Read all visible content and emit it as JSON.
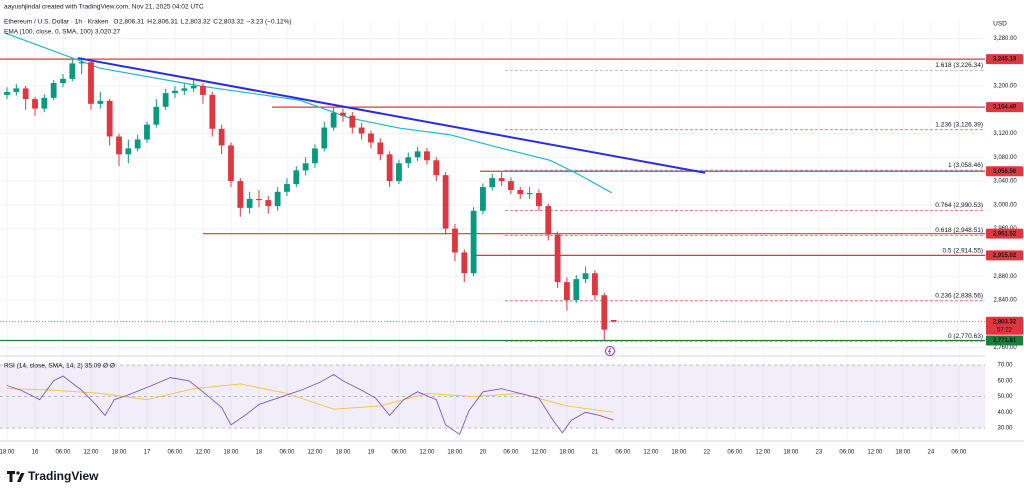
{
  "chart_data": {
    "type": "candlestick",
    "credit": "aayushjindal created with TradingView.com, Nov 21, 2025 04:02 UTC",
    "symbol": "Ethereum / U.S. Dollar · 1h · Kraken",
    "quote": [
      {
        "key": "O",
        "value": "2,806.31"
      },
      {
        "key": "H",
        "value": "2,806.31"
      },
      {
        "key": "L",
        "value": "2,803.32"
      },
      {
        "key": "C",
        "value": "2,803.32"
      }
    ],
    "change": "−3.23 (−0.12%)",
    "currency": "USD",
    "up_color": "#089981",
    "down_color": "#e0363f",
    "xlim": [
      -7.5,
      203.6
    ],
    "ylim": [
      2747.4,
      3314.4
    ],
    "yticks": [
      {
        "value": 3280,
        "label": "3,280.00"
      },
      {
        "value": 3200,
        "label": "3,200.00"
      },
      {
        "value": 3120,
        "label": "3,120.00"
      },
      {
        "value": 3080,
        "label": "3,080.00"
      },
      {
        "value": 3040,
        "label": "3,040.00"
      },
      {
        "value": 3000,
        "label": "3,000.00"
      },
      {
        "value": 2960,
        "label": "2,960.00"
      },
      {
        "value": 2880,
        "label": "2,880.00"
      },
      {
        "value": 2840,
        "label": "2,840.00"
      },
      {
        "value": 2760,
        "label": "2,760.00"
      }
    ],
    "xticks": [
      {
        "value": -6,
        "label": "18:00"
      },
      {
        "value": 0,
        "label": "16"
      },
      {
        "value": 6,
        "label": "06:00"
      },
      {
        "value": 12,
        "label": "12:00"
      },
      {
        "value": 18,
        "label": "18:00"
      },
      {
        "value": 24,
        "label": "17"
      },
      {
        "value": 30,
        "label": "06:00"
      },
      {
        "value": 36,
        "label": "12:00"
      },
      {
        "value": 42,
        "label": "18:00"
      },
      {
        "value": 48,
        "label": "18"
      },
      {
        "value": 54,
        "label": "06:00"
      },
      {
        "value": 60,
        "label": "12:00"
      },
      {
        "value": 66,
        "label": "18:00"
      },
      {
        "value": 72,
        "label": "19"
      },
      {
        "value": 78,
        "label": "06:00"
      },
      {
        "value": 84,
        "label": "12:00"
      },
      {
        "value": 90,
        "label": "18:00"
      },
      {
        "value": 96,
        "label": "20"
      },
      {
        "value": 102,
        "label": "06:00"
      },
      {
        "value": 108,
        "label": "12:00"
      },
      {
        "value": 114,
        "label": "18:00"
      },
      {
        "value": 120,
        "label": "21"
      },
      {
        "value": 126,
        "label": "06:00"
      },
      {
        "value": 132,
        "label": "12:00"
      },
      {
        "value": 138,
        "label": "18:00"
      },
      {
        "value": 144,
        "label": "22"
      },
      {
        "value": 150,
        "label": "06:00"
      },
      {
        "value": 156,
        "label": "12:00"
      },
      {
        "value": 162,
        "label": "18:00"
      },
      {
        "value": 168,
        "label": "23"
      },
      {
        "value": 174,
        "label": "06:00"
      },
      {
        "value": 180,
        "label": "12:00"
      },
      {
        "value": 186,
        "label": "18:00"
      },
      {
        "value": 192,
        "label": "24"
      },
      {
        "value": 198,
        "label": "06:00"
      }
    ],
    "x": [
      -6,
      -4,
      -2,
      0,
      2,
      4,
      6,
      8,
      10,
      12,
      14,
      16,
      18,
      20,
      22,
      24,
      26,
      28,
      30,
      32,
      34,
      36,
      38,
      40,
      42,
      44,
      46,
      48,
      50,
      52,
      54,
      56,
      58,
      60,
      62,
      64,
      66,
      68,
      70,
      72,
      74,
      76,
      78,
      80,
      82,
      84,
      86,
      88,
      90,
      92,
      94,
      96,
      98,
      100,
      102,
      104,
      106,
      108,
      110,
      112,
      114,
      116,
      118,
      120,
      122,
      124
    ],
    "candles": [
      [
        3185,
        3198,
        3178,
        3190
      ],
      [
        3190,
        3203,
        3184,
        3196
      ],
      [
        3196,
        3200,
        3160,
        3178
      ],
      [
        3178,
        3182,
        3150,
        3162
      ],
      [
        3162,
        3186,
        3156,
        3180
      ],
      [
        3180,
        3210,
        3176,
        3205
      ],
      [
        3205,
        3220,
        3198,
        3212
      ],
      [
        3212,
        3244,
        3208,
        3238
      ],
      [
        3238,
        3248,
        3220,
        3240
      ],
      [
        3240,
        3242,
        3160,
        3170
      ],
      [
        3170,
        3190,
        3162,
        3175
      ],
      [
        3175,
        3178,
        3100,
        3115
      ],
      [
        3115,
        3120,
        3065,
        3085
      ],
      [
        3085,
        3110,
        3070,
        3095
      ],
      [
        3095,
        3118,
        3090,
        3110
      ],
      [
        3110,
        3140,
        3104,
        3135
      ],
      [
        3135,
        3178,
        3130,
        3165
      ],
      [
        3165,
        3195,
        3160,
        3188
      ],
      [
        3188,
        3200,
        3180,
        3192
      ],
      [
        3192,
        3204,
        3185,
        3196
      ],
      [
        3196,
        3210,
        3190,
        3200
      ],
      [
        3200,
        3205,
        3170,
        3185
      ],
      [
        3185,
        3190,
        3115,
        3128
      ],
      [
        3128,
        3135,
        3085,
        3100
      ],
      [
        3100,
        3105,
        3030,
        3040
      ],
      [
        3040,
        3045,
        2980,
        2995
      ],
      [
        2995,
        3022,
        2985,
        3010
      ],
      [
        3010,
        3025,
        2996,
        3008
      ],
      [
        3008,
        3015,
        2985,
        2998
      ],
      [
        2998,
        3030,
        2990,
        3022
      ],
      [
        3022,
        3045,
        3015,
        3035
      ],
      [
        3035,
        3065,
        3030,
        3058
      ],
      [
        3058,
        3080,
        3050,
        3070
      ],
      [
        3070,
        3102,
        3062,
        3095
      ],
      [
        3095,
        3140,
        3090,
        3130
      ],
      [
        3130,
        3164,
        3125,
        3155
      ],
      [
        3155,
        3162,
        3140,
        3150
      ],
      [
        3150,
        3156,
        3120,
        3130
      ],
      [
        3130,
        3138,
        3110,
        3120
      ],
      [
        3120,
        3125,
        3095,
        3105
      ],
      [
        3105,
        3112,
        3075,
        3085
      ],
      [
        3085,
        3090,
        3030,
        3040
      ],
      [
        3040,
        3076,
        3035,
        3070
      ],
      [
        3070,
        3088,
        3062,
        3080
      ],
      [
        3080,
        3098,
        3074,
        3090
      ],
      [
        3090,
        3096,
        3068,
        3075
      ],
      [
        3075,
        3080,
        3040,
        3050
      ],
      [
        3050,
        3055,
        2950,
        2960
      ],
      [
        2960,
        2968,
        2905,
        2920
      ],
      [
        2920,
        2925,
        2870,
        2885
      ],
      [
        2885,
        2996,
        2880,
        2990
      ],
      [
        2990,
        3036,
        2984,
        3030
      ],
      [
        3030,
        3052,
        3024,
        3045
      ],
      [
        3045,
        3055,
        3032,
        3040
      ],
      [
        3040,
        3046,
        3018,
        3025
      ],
      [
        3025,
        3030,
        3010,
        3018
      ],
      [
        3018,
        3030,
        3010,
        3020
      ],
      [
        3020,
        3026,
        2990,
        2998
      ],
      [
        2998,
        3002,
        2940,
        2950
      ],
      [
        2950,
        2955,
        2860,
        2870
      ],
      [
        2870,
        2878,
        2822,
        2840
      ],
      [
        2840,
        2882,
        2835,
        2875
      ],
      [
        2875,
        2896,
        2868,
        2885
      ],
      [
        2885,
        2890,
        2840,
        2848
      ],
      [
        2848,
        2852,
        2772,
        2790
      ],
      [
        2806.31,
        2806.31,
        2803.32,
        2803.32
      ]
    ],
    "ema": {
      "name": "EMA (100, close, 0, SMA, 100)",
      "last_label": "3,020.27",
      "color": "#22b8cf",
      "x": [
        -6.4,
        13.9,
        35.4,
        56.8,
        67.5,
        78.2,
        88.9,
        99.6,
        110.4,
        116.8,
        123.6
      ],
      "values": [
        3289,
        3230,
        3200,
        3176,
        3146,
        3129,
        3118,
        3096,
        3075,
        3050,
        3020.27
      ]
    },
    "trendline": {
      "color": "#2b2be0",
      "x": [
        9.2,
        143.6
      ],
      "values": [
        3247,
        3054
      ]
    },
    "levels": [
      {
        "value": 3245.18,
        "label": "3,245.18",
        "color": "#e0363f",
        "start": -7.5
      },
      {
        "value": 3164.49,
        "label": "3,164.49",
        "color": "#e0363f",
        "start": 50.8
      },
      {
        "value": 3056.56,
        "label": "3,056.56",
        "color": "#e0363f",
        "start": 95.4
      },
      {
        "value": 2951.52,
        "label": "2,951.52",
        "color": "#e0363f",
        "start": 36
      },
      {
        "value": 2915.02,
        "label": "2,915.02",
        "color": "#e0363f",
        "start": 93.6
      },
      {
        "value": 2771.81,
        "label": "2,771.81",
        "color": "#1b7f3a",
        "start": -7.5
      }
    ],
    "last_price": {
      "value": 2803.32,
      "label": "2,803.32",
      "countdown": "57:22",
      "color": "#e0363f"
    },
    "fib_start": 100.7,
    "fibs": [
      {
        "value": 3226.34,
        "label": "1.618 (3,226.34)",
        "color": "#a58fc4"
      },
      {
        "value": 3126.39,
        "label": "1.236 (3,126.39)",
        "color": "#9c27b0"
      },
      {
        "value": 3058.46,
        "label": "1 (3,058.46)",
        "color": "#2196f3"
      },
      {
        "value": 2990.53,
        "label": "0.764 (2,990.53)",
        "color": "#e0363f"
      },
      {
        "value": 2948.51,
        "label": "0.618 (2,948.51)",
        "color": "#089981"
      },
      {
        "value": 2914.55,
        "label": "0.5 (2,914.55)",
        "color": "#e0363f"
      },
      {
        "value": 2838.56,
        "label": "0.236 (2,838.56)",
        "color": "#e0363f"
      },
      {
        "value": 2770.63,
        "label": "0 (2,770.63)",
        "color": "#787b86"
      }
    ],
    "rsi": {
      "title": "RSI (14, close, SMA, 14, 2)",
      "value_label": "35.09",
      "extra": "Ø Ø",
      "color": "#7e57c2",
      "ylim": [
        22.4,
        75.1
      ],
      "band": [
        30,
        70
      ],
      "guides": [
        70,
        50,
        30
      ],
      "yticks": [
        {
          "value": 70,
          "label": "70.00"
        },
        {
          "value": 60,
          "label": "60.00"
        },
        {
          "value": 50,
          "label": "50.00"
        },
        {
          "value": 40,
          "label": "40.00"
        },
        {
          "value": 30,
          "label": "30.00"
        }
      ],
      "x": [
        -6,
        -3,
        1,
        4,
        6,
        10,
        13,
        15,
        17,
        20,
        25,
        29,
        33,
        36,
        40,
        42,
        45,
        48,
        52,
        57,
        61,
        64,
        66,
        70,
        73,
        76,
        79,
        82,
        86,
        88,
        91,
        93,
        96,
        100,
        104,
        108,
        111,
        113,
        115,
        118,
        121,
        124
      ],
      "values": [
        57,
        54,
        48,
        60,
        63,
        54,
        45,
        38,
        48,
        51,
        57,
        62,
        60,
        53,
        43,
        32,
        38,
        45,
        49,
        54,
        59,
        64,
        60,
        54,
        49,
        38,
        48,
        53,
        48,
        32,
        26,
        41,
        53,
        55,
        52,
        49,
        35,
        27,
        35,
        40,
        38,
        35.09
      ],
      "ma": {
        "color": "#f5c342",
        "x": [
          -6,
          4,
          14,
          24,
          34,
          44,
          54,
          64,
          74,
          84,
          94,
          104,
          114,
          124
        ],
        "values": [
          55,
          54,
          52,
          48,
          55,
          58,
          52,
          42,
          44,
          52,
          50,
          52,
          44,
          40
        ]
      }
    }
  },
  "brand": "TradingView"
}
